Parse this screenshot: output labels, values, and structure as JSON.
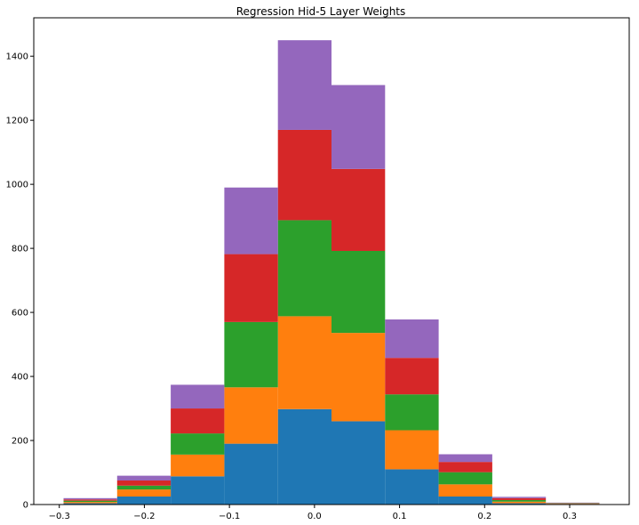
{
  "chart_data": {
    "type": "bar",
    "stacked": true,
    "histogram": true,
    "title": "Regression Hid-5 Layer Weights",
    "xlabel": "",
    "ylabel": "",
    "xlim": [
      -0.33,
      0.37
    ],
    "ylim": [
      0,
      1520
    ],
    "grid": false,
    "legend": "none",
    "x_ticks": [
      -0.3,
      -0.2,
      -0.1,
      0.0,
      0.1,
      0.2,
      0.3
    ],
    "x_tick_labels": [
      "−0.3",
      "−0.2",
      "−0.1",
      "0.0",
      "0.1",
      "0.2",
      "0.3"
    ],
    "y_ticks": [
      0,
      200,
      400,
      600,
      800,
      1000,
      1200,
      1400
    ],
    "y_tick_labels": [
      "0",
      "200",
      "400",
      "600",
      "800",
      "1000",
      "1200",
      "1400"
    ],
    "bin_edges": [
      -0.295,
      -0.232,
      -0.169,
      -0.106,
      -0.043,
      0.02,
      0.083,
      0.146,
      0.209,
      0.272,
      0.335
    ],
    "series": [
      {
        "color": "#1f77b4",
        "values": [
          4,
          25,
          88,
          190,
          298,
          260,
          110,
          25,
          4,
          2
        ]
      },
      {
        "color": "#ff7f0e",
        "values": [
          4,
          22,
          68,
          176,
          290,
          276,
          122,
          38,
          5,
          1
        ]
      },
      {
        "color": "#2ca02c",
        "values": [
          4,
          12,
          66,
          204,
          300,
          256,
          112,
          38,
          5,
          1
        ]
      },
      {
        "color": "#d62728",
        "values": [
          4,
          16,
          78,
          212,
          282,
          256,
          114,
          32,
          6,
          1
        ]
      },
      {
        "color": "#9467bd",
        "values": [
          4,
          15,
          74,
          208,
          280,
          262,
          120,
          24,
          4,
          1
        ]
      }
    ]
  }
}
